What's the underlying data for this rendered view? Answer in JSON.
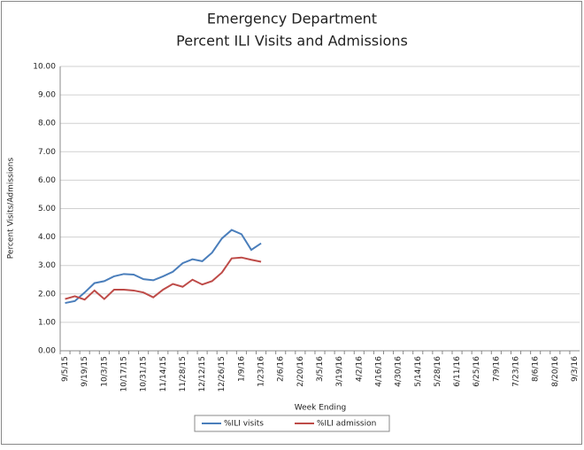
{
  "chart_data": {
    "type": "line",
    "title": "Emergency Department",
    "subtitle": "Percent ILI Visits and Admissions",
    "y_label": "Percent Visits/Admissions",
    "x_label": "Week Ending",
    "categories": [
      "9/5/15",
      null,
      "9/19/15",
      null,
      "10/3/15",
      null,
      "10/17/15",
      null,
      "10/31/15",
      null,
      "11/14/15",
      null,
      "11/28/15",
      null,
      "12/12/15",
      null,
      "12/26/15",
      null,
      "1/9/16",
      null,
      "1/23/16",
      null,
      "2/6/16",
      null,
      "2/20/16",
      null,
      "3/5/16",
      null,
      "3/19/16",
      null,
      "4/2/16",
      null,
      "4/16/16",
      null,
      "4/30/16",
      null,
      "5/14/16",
      null,
      "5/28/16",
      null,
      "6/11/16",
      null,
      "6/25/16",
      null,
      "7/9/16",
      null,
      "7/23/16",
      null,
      "8/6/16",
      null,
      "8/20/16",
      null,
      "9/3/16"
    ],
    "series": [
      {
        "name": "%ILI visits",
        "color": "#4a7ebb",
        "values": [
          1.68,
          1.75,
          2.05,
          2.38,
          2.45,
          2.62,
          2.7,
          2.68,
          2.52,
          2.48,
          2.62,
          2.78,
          3.08,
          3.22,
          3.15,
          3.45,
          3.95,
          4.25,
          4.1,
          3.55,
          3.78,
          null,
          null,
          null,
          null,
          null,
          null,
          null,
          null,
          null,
          null,
          null,
          null,
          null,
          null,
          null,
          null,
          null,
          null,
          null,
          null,
          null,
          null,
          null,
          null,
          null,
          null,
          null,
          null,
          null,
          null,
          null,
          null
        ]
      },
      {
        "name": "%ILI admission",
        "color": "#be4b48",
        "values": [
          1.82,
          1.92,
          1.8,
          2.12,
          1.82,
          2.15,
          2.15,
          2.12,
          2.05,
          1.88,
          2.15,
          2.35,
          2.25,
          2.5,
          2.33,
          2.45,
          2.75,
          3.25,
          3.28,
          3.2,
          3.13,
          null,
          null,
          null,
          null,
          null,
          null,
          null,
          null,
          null,
          null,
          null,
          null,
          null,
          null,
          null,
          null,
          null,
          null,
          null,
          null,
          null,
          null,
          null,
          null,
          null,
          null,
          null,
          null,
          null,
          null,
          null,
          null
        ]
      }
    ],
    "ylim": [
      0,
      10
    ],
    "yticks": [
      {
        "value": 0,
        "label": "0.00"
      },
      {
        "value": 1,
        "label": "1.00"
      },
      {
        "value": 2,
        "label": "2.00"
      },
      {
        "value": 3,
        "label": "3.00"
      },
      {
        "value": 4,
        "label": "4.00"
      },
      {
        "value": 5,
        "label": "5.00"
      },
      {
        "value": 6,
        "label": "6.00"
      },
      {
        "value": 7,
        "label": "7.00"
      },
      {
        "value": 8,
        "label": "8.00"
      },
      {
        "value": 9,
        "label": "9.00"
      },
      {
        "value": 10,
        "label": "10.00"
      }
    ],
    "grid": true,
    "legend": "bottom"
  }
}
